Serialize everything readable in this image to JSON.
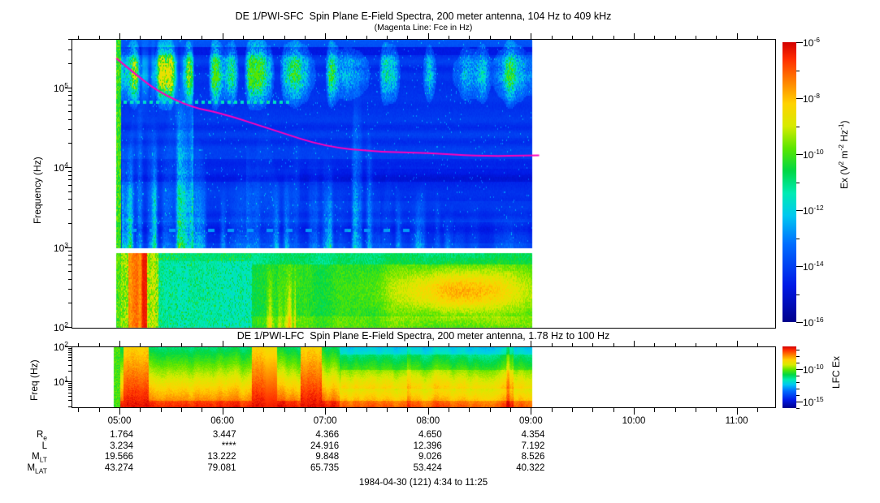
{
  "figure": {
    "title": "DE 1/PWI-SFC  Spin Plane E-Field Spectra, 200 meter antenna, 104 Hz to 409 kHz",
    "subtitle": "(Magenta Line: Fce in Hz)",
    "footer": "1984-04-30 (121) 4:34 to 11:25",
    "colors": {
      "background": "#FFFFFF",
      "axis": "#000000",
      "fce_line": "#FF00BB"
    }
  },
  "sfc": {
    "ylabel": "Frequency (Hz)",
    "yticks": [
      "10^5",
      "10^4",
      "10^3",
      "10^2"
    ],
    "colorbar": {
      "label": "Ex (V^2 m^-2 Hz^-1)",
      "ticks": [
        "10^-6",
        "10^-8",
        "10^-10",
        "10^-12",
        "10^-14",
        "10^-16"
      ]
    }
  },
  "lfc": {
    "title": "DE 1/PWI-LFC  Spin Plane E-Field Spectra, 200 meter antenna, 1.78 Hz to 100 Hz",
    "ylabel": "Freq (Hz)",
    "yticks": [
      "10^2",
      "10^1"
    ],
    "colorbar": {
      "label": "LFC Ex",
      "ticks": [
        "10^-10",
        "10^-15"
      ]
    }
  },
  "xaxis": {
    "ticks": [
      "05:00",
      "06:00",
      "07:00",
      "08:00",
      "09:00",
      "10:00",
      "11:00"
    ]
  },
  "ephemeris": {
    "rows": [
      {
        "label": "R_e",
        "values": [
          "1.764",
          "3.447",
          "4.366",
          "4.650",
          "4.354"
        ]
      },
      {
        "label": "L",
        "values": [
          "3.234",
          "****",
          "24.916",
          "12.396",
          "7.192"
        ]
      },
      {
        "label": "M_LT",
        "values": [
          "19.566",
          "13.222",
          "9.848",
          "9.026",
          "8.526"
        ]
      },
      {
        "label": "M_LAT",
        "values": [
          "43.274",
          "79.081",
          "65.735",
          "53.424",
          "40.322"
        ]
      }
    ]
  },
  "chart_data": [
    {
      "type": "heatmap",
      "title": "DE 1/PWI-SFC  Spin Plane E-Field Spectra, 200 meter antenna, 104 Hz to 409 kHz",
      "subtitle": "(Magenta Line: Fce in Hz)",
      "ylabel": "Frequency (Hz)",
      "y_scale": "log",
      "y_range_hz": [
        100,
        409000
      ],
      "yticks": [
        "10^2",
        "10^3",
        "10^4",
        "10^5"
      ],
      "x_axis_time_range": [
        "04:34",
        "11:25"
      ],
      "data_time_span": [
        "04:58",
        "09:05"
      ],
      "xticks": [
        "05:00",
        "06:00",
        "07:00",
        "08:00",
        "09:00",
        "10:00",
        "11:00"
      ],
      "colorbar": {
        "label": "Ex (V^2 m^-2 Hz^-1)",
        "log_range": [
          1e-16,
          1e-06
        ],
        "ticks": [
          "10^-6",
          "10^-8",
          "10^-10",
          "10^-12",
          "10^-14",
          "10^-16"
        ],
        "palette": "rainbow (red=high, dark blue=low)"
      },
      "overlay_line": {
        "name": "Fce electron cyclotron frequency",
        "color": "#FF00BB",
        "points_time_hours_vs_hz": [
          [
            4.97,
            230000
          ],
          [
            5.2,
            130000
          ],
          [
            5.4,
            85000
          ],
          [
            5.7,
            56000
          ],
          [
            6.0,
            47000
          ],
          [
            6.5,
            29000
          ],
          [
            7.0,
            18000
          ],
          [
            7.5,
            15600
          ],
          [
            8.0,
            15000
          ],
          [
            8.5,
            13700
          ],
          [
            9.08,
            14000
          ]
        ]
      },
      "features": "Deep blue background above 1 kHz with cyan/green turbulent emission columns 04:58-06:10 and 06:10-07:30 below Fce; speckled cyan cloud band near 100-300 kHz; instrument gap near 1 kHz; 100 Hz-1 kHz band green/cyan with red verticals near 05:10, orange bursts 06:25-06:45 and a yellow-orange patch 07:45-09:00; no data after ~09:05"
    },
    {
      "type": "heatmap",
      "title": "DE 1/PWI-LFC  Spin Plane E-Field Spectra, 200 meter antenna, 1.78 Hz to 100 Hz",
      "ylabel": "Freq (Hz)",
      "y_scale": "log",
      "y_range_hz": [
        1.78,
        100
      ],
      "yticks": [
        "10^1",
        "10^2"
      ],
      "x_axis_time_range": [
        "04:34",
        "11:25"
      ],
      "data_time_span": [
        "04:58",
        "09:05"
      ],
      "xticks": [
        "05:00",
        "06:00",
        "07:00",
        "08:00",
        "09:00",
        "10:00",
        "11:00"
      ],
      "colorbar": {
        "label": "LFC Ex",
        "ticks": [
          "10^-10",
          "10^-15"
        ],
        "palette": "rainbow (red=high, dark blue=low)"
      },
      "features": "Stratified spectrum: cyan/green at top near 100 Hz grading to orange/red at lowest frequencies; intense red columns near 05:05-05:25, 06:20-06:40 and 06:50-07:10; yellow mid-band after 07:30"
    },
    {
      "type": "table",
      "name": "ephemeris",
      "columns": [
        "05:00",
        "06:00",
        "07:00",
        "08:00",
        "09:00"
      ],
      "rows": [
        {
          "label": "R_e",
          "values": [
            1.764,
            3.447,
            4.366,
            4.65,
            4.354
          ]
        },
        {
          "label": "L",
          "values": [
            "3.234",
            "****",
            "24.916",
            "12.396",
            "7.192"
          ]
        },
        {
          "label": "M_LT",
          "values": [
            19.566,
            13.222,
            9.848,
            9.026,
            8.526
          ]
        },
        {
          "label": "M_LAT",
          "values": [
            43.274,
            79.081,
            65.735,
            53.424,
            40.322
          ]
        }
      ],
      "caption": "1984-04-30 (121) 4:34 to 11:25"
    }
  ]
}
